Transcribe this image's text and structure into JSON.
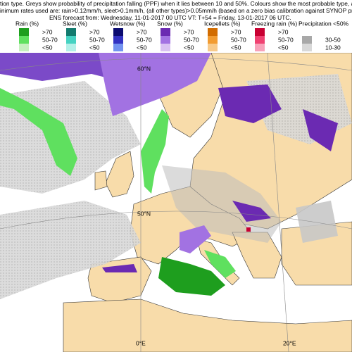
{
  "header": {
    "lines": [
      "tion type. Greys show probability of precipitation falling (PPF) when it lies between 10 and 50%. Colours show the most probable type, and its probab",
      "inimum rates used are: rain>0.12mm/h, sleet>0.1mm/h, (all other types)>0.05mm/h (based on a zero bias calibration against SYNOP present weathe",
      "ENS forecast from: Wednesday, 11-01-2017 00 UTC      VT: T+54 = Friday, 13-01-2017  06 UTC."
    ]
  },
  "legend": {
    "groups": [
      {
        "name": "Rain (%)",
        "levels": [
          {
            "label": ">70",
            "color": "#1e9e1e"
          },
          {
            "label": "50-70",
            "color": "#5fe05f"
          },
          {
            "label": "<50",
            "color": "#c6f0bf"
          }
        ]
      },
      {
        "name": "Sleet (%)",
        "levels": [
          {
            "label": ">70",
            "color": "#127a6e"
          },
          {
            "label": "50-70",
            "color": "#45d2c2"
          },
          {
            "label": "<50",
            "color": "#b2f0e8"
          }
        ]
      },
      {
        "name": "Wetsnow (%)",
        "levels": [
          {
            "label": ">70",
            "color": "#0b0b70"
          },
          {
            "label": "50-70",
            "color": "#3232c2"
          },
          {
            "label": "<50",
            "color": "#7292f0"
          }
        ]
      },
      {
        "name": "Snow (%)",
        "levels": [
          {
            "label": ">70",
            "color": "#6b2ab2"
          },
          {
            "label": "50-70",
            "color": "#a272e2"
          },
          {
            "label": "<50",
            "color": "#d9c2f2"
          }
        ]
      },
      {
        "name": "Icepellets (%)",
        "levels": [
          {
            "label": ">70",
            "color": "#d26c00"
          },
          {
            "label": "50-70",
            "color": "#f29c32"
          },
          {
            "label": "<50",
            "color": "#f8ca8a"
          }
        ]
      },
      {
        "name": "Freezing rain (%)",
        "levels": [
          {
            "label": ">70",
            "color": "#c80032"
          },
          {
            "label": "50-70",
            "color": "#f04272"
          },
          {
            "label": "<50",
            "color": "#f8a2ba"
          }
        ]
      },
      {
        "name": "Precipitation <50%",
        "levels": [
          {
            "label": "30-50",
            "color": "#a8a8a8"
          },
          {
            "label": "10-30",
            "color": "#d8d8d8"
          }
        ]
      }
    ]
  },
  "map": {
    "grid_labels": [
      "60°N",
      "50°N",
      "0°E",
      "20°E"
    ]
  }
}
